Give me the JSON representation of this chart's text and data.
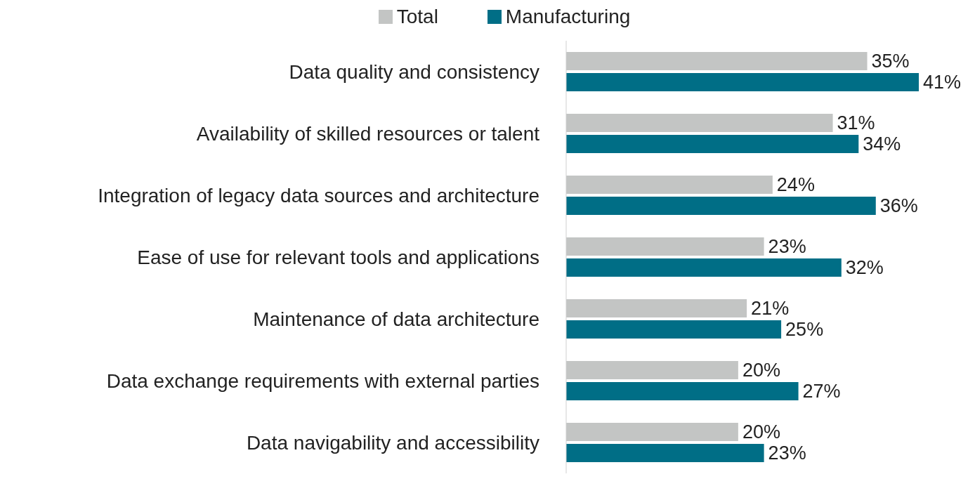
{
  "chart_data": {
    "type": "bar",
    "orientation": "horizontal",
    "legend": "top",
    "grid": false,
    "categories": [
      "Data quality and consistency",
      "Availability of skilled resources or talent",
      "Integration of legacy data sources and architecture",
      "Ease of use for relevant tools and applications",
      "Maintenance of data architecture",
      "Data exchange requirements with external parties",
      "Data navigability and accessibility"
    ],
    "series": [
      {
        "name": "Total",
        "color": "#c3c5c4",
        "values": [
          35,
          31,
          24,
          23,
          21,
          20,
          20
        ],
        "value_labels": [
          "35%",
          "31%",
          "24%",
          "23%",
          "21%",
          "20%",
          "20%"
        ]
      },
      {
        "name": "Manufacturing",
        "color": "#006e86",
        "values": [
          41,
          34,
          36,
          32,
          25,
          27,
          23
        ],
        "value_labels": [
          "41%",
          "34%",
          "36%",
          "32%",
          "25%",
          "27%",
          "23%"
        ]
      }
    ]
  }
}
